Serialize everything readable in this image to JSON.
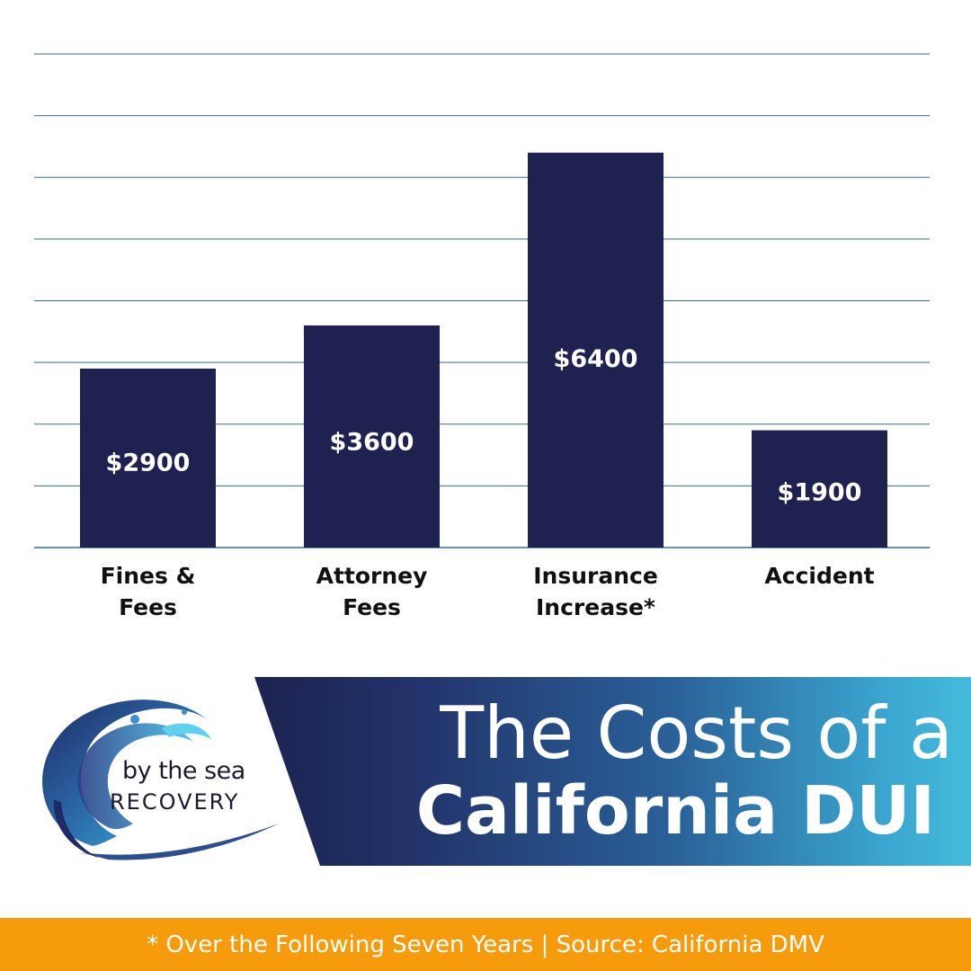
{
  "chart_data": {
    "type": "bar",
    "categories": [
      "Fines &\nFees",
      "Attorney\nFees",
      "Insurance\nIncrease*",
      "Accident"
    ],
    "values": [
      2900,
      3600,
      6400,
      1900
    ],
    "value_labels": [
      "$2900",
      "$3600",
      "$6400",
      "$1900"
    ],
    "ylim": [
      0,
      8000
    ],
    "grid": true,
    "bar_color": "#1f2250",
    "grid_color": "#2f6f94"
  },
  "title": {
    "line1": "The Costs of a",
    "line2": "California DUI"
  },
  "logo": {
    "line1": "by the sea",
    "line2": "RECOVERY"
  },
  "footer": {
    "text": "* Over the Following Seven Years | Source: California DMV"
  },
  "colors": {
    "accent_orange": "#f59b0c",
    "banner_dark": "#1c2350",
    "banner_light": "#45bbdc"
  }
}
